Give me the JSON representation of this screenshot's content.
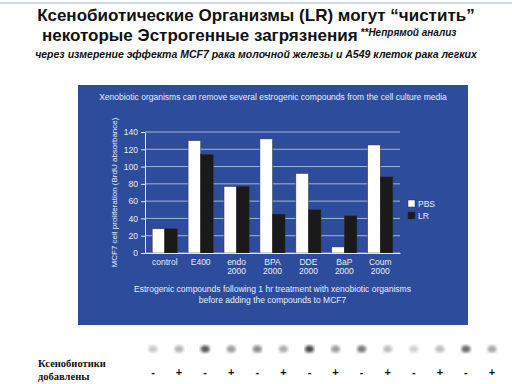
{
  "header": {
    "title_lines": [
      "Ксенобиотические Организмы (LR) могут “чистить”",
      "некоторые Эстрогенные загрязнения"
    ],
    "note_lines": [
      "**Непрямой анализ",
      "через измерение эффекта MCF7 рака молочной железы и A549 клеток рака легких"
    ]
  },
  "chart_data": {
    "type": "bar",
    "title": "Xenobiotic organisms can remove several estrogenic compounds from the cell culture media",
    "x_label": "Estrogenic compounds following 1 hr treatment with xenobiotic organisms before adding the compounds to MCF7",
    "y_label": "MCF7 cell proliferation (BrdU absorbance)",
    "categories": [
      "control",
      "E400",
      "endo 2000",
      "BPA 2000",
      "DDE 2000",
      "BaP 2000",
      "Coum 2000"
    ],
    "series": [
      {
        "name": "PBS",
        "color": "#ffffff",
        "values": [
          28,
          130,
          77,
          132,
          92,
          7,
          125
        ]
      },
      {
        "name": "LR",
        "color": "#1a1a1a",
        "values": [
          28,
          114,
          77,
          45,
          50,
          43,
          88
        ]
      }
    ],
    "ylim": [
      0,
      140
    ],
    "yticks": [
      0,
      20,
      40,
      60,
      80,
      100,
      120,
      140
    ],
    "grid": true,
    "legend": "right"
  },
  "footer": {
    "label_lines": [
      "Ксенобиотики",
      "добавлены"
    ],
    "signs": [
      "-",
      "+",
      "-",
      "+",
      "-",
      "+",
      "-",
      "+",
      "-",
      "+",
      "-",
      "+",
      "-",
      "+"
    ]
  }
}
